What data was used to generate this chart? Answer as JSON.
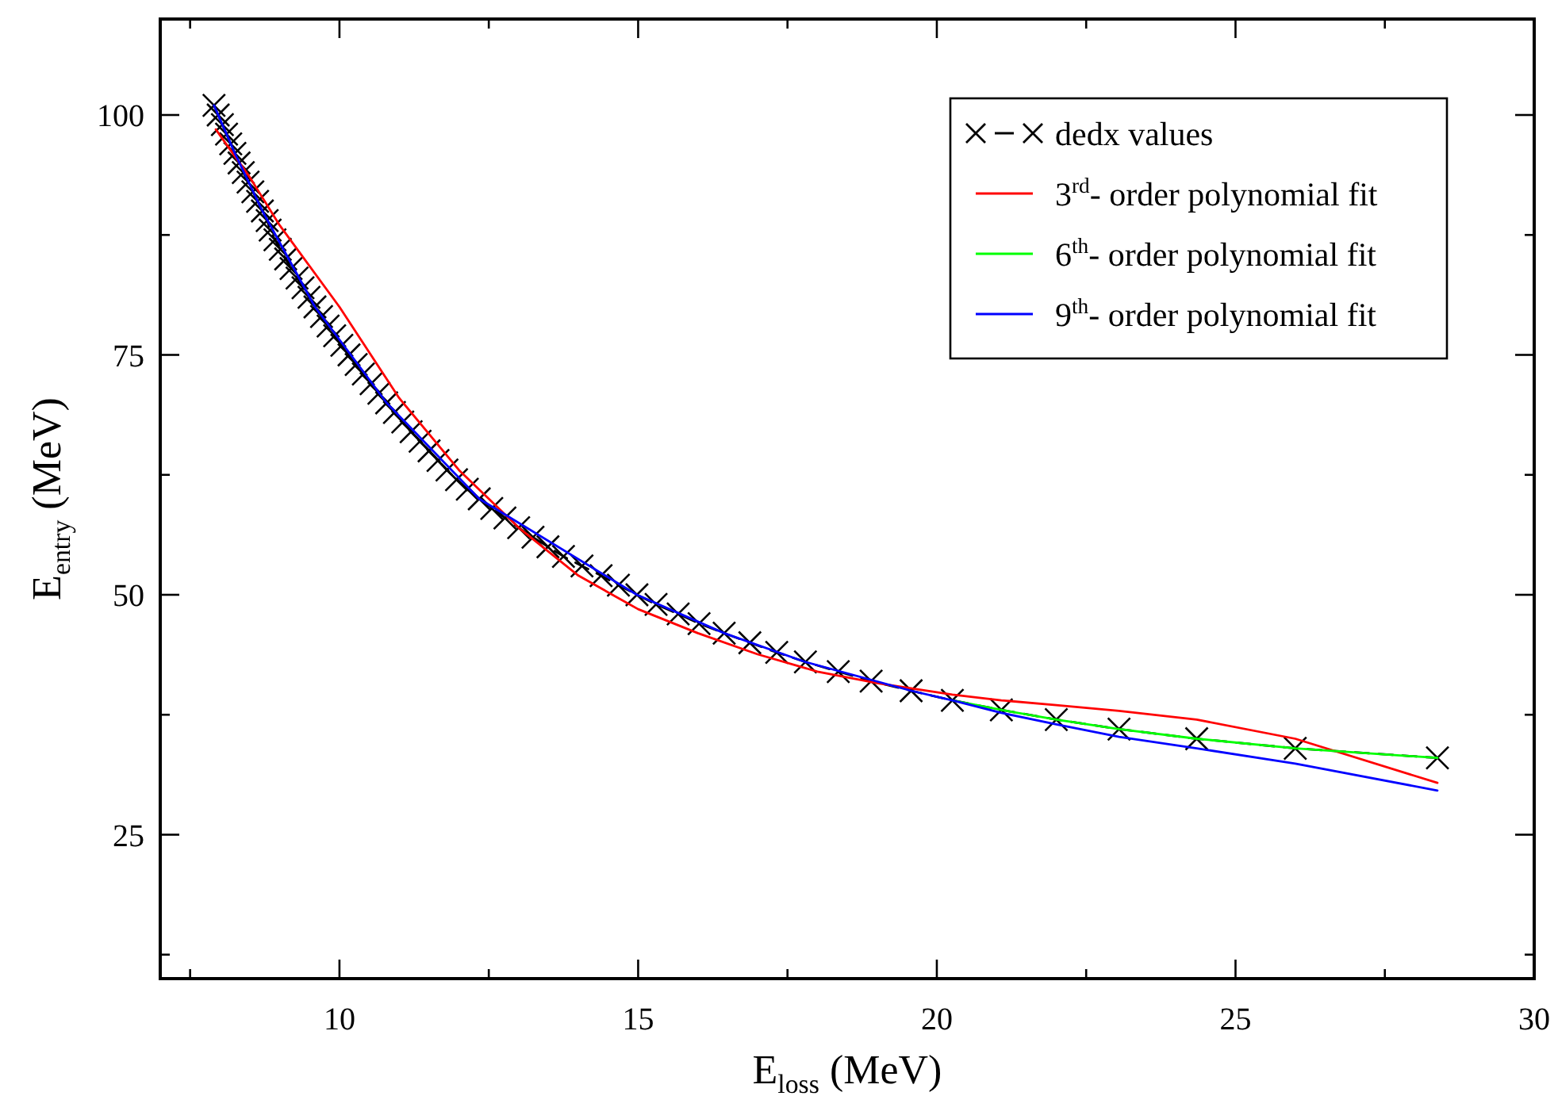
{
  "chart_data": {
    "type": "line",
    "xlabel": "E$_{loss}$ (MeV)",
    "ylabel": "E$_{entry}$ (MeV)",
    "xlim": [
      7,
      30
    ],
    "ylim": [
      10,
      110
    ],
    "xticks": [
      {
        "value": 7.5,
        "label": null
      },
      10,
      {
        "value": 12.5,
        "label": null
      },
      15,
      {
        "value": 17.5,
        "label": null
      },
      20,
      {
        "value": 22.5,
        "label": null
      },
      25,
      {
        "value": 27.5,
        "label": null
      },
      30
    ],
    "yticks": [
      {
        "value": 12.5,
        "label": null
      },
      25,
      {
        "value": 37.5,
        "label": null
      },
      50,
      {
        "value": 62.5,
        "label": null
      },
      75,
      {
        "value": 87.5,
        "label": null
      },
      100
    ],
    "grid": false,
    "legend": "top right",
    "series": [
      {
        "name": "dedx values",
        "color": "#000000",
        "marker": "cross",
        "line_style": "dashed",
        "x": [
          7.9,
          7.97,
          8.04,
          8.11,
          8.18,
          8.25,
          8.32,
          8.39,
          8.47,
          8.55,
          8.63,
          8.71,
          8.79,
          8.84,
          8.92,
          9.01,
          9.1,
          9.19,
          9.29,
          9.39,
          9.49,
          9.59,
          9.7,
          9.81,
          9.92,
          10.04,
          10.16,
          10.28,
          10.4,
          10.53,
          10.66,
          10.79,
          10.92,
          11.06,
          11.2,
          11.35,
          11.5,
          11.65,
          11.8,
          11.96,
          12.14,
          12.34,
          12.55,
          12.77,
          13.0,
          13.24,
          13.49,
          13.75,
          14.06,
          14.38,
          14.67,
          14.98,
          15.3,
          15.67,
          16.02,
          16.44,
          16.87,
          17.32,
          17.8,
          18.35,
          18.9,
          19.57,
          20.26,
          21.08,
          22.0,
          23.05,
          24.35,
          26.0,
          28.38
        ],
        "values": [
          101,
          100,
          99,
          98,
          97,
          96,
          95,
          94,
          93,
          92,
          91,
          90,
          89,
          88,
          87,
          86,
          85,
          84,
          83,
          82,
          81,
          80,
          79,
          78,
          77,
          76,
          75,
          74,
          73,
          72,
          71,
          70,
          69,
          68,
          67,
          66,
          65,
          64,
          63,
          62,
          61,
          60,
          59,
          58,
          57,
          56,
          55,
          54,
          53,
          52,
          51,
          50,
          49,
          48,
          47,
          46,
          45,
          44,
          43,
          42,
          41,
          40,
          39,
          38,
          37,
          36,
          35,
          34,
          33
        ]
      },
      {
        "name": "3$^{rd}$- order polynomial fit",
        "color": "#ff0000",
        "marker": "none",
        "line_style": "solid",
        "x": [
          7.93,
          8.5,
          9,
          10,
          11,
          12,
          13,
          14,
          15,
          16,
          17,
          18,
          19,
          20.26,
          21.08,
          22.0,
          23.05,
          24.35,
          26.0,
          28.38
        ],
        "values": [
          98.5,
          93.5,
          88.5,
          80,
          70.5,
          63,
          57,
          52,
          48.5,
          46,
          43.8,
          42,
          40.8,
          39.6,
          39.0,
          38.5,
          37.9,
          37.0,
          35.0,
          30.4
        ]
      },
      {
        "name": "6$^{th}$- order polynomial fit",
        "color": "#00ff00",
        "marker": "none",
        "line_style": "solid",
        "x": [
          20.26,
          21.08,
          22.0,
          23.05,
          24.35,
          26.0,
          28.38
        ],
        "values": [
          39,
          38,
          37,
          36,
          35,
          34,
          33
        ]
      },
      {
        "name": "9$^{th}$- order polynomial fit",
        "color": "#0000ff",
        "marker": "none",
        "line_style": "solid",
        "x": [
          7.9,
          8.25,
          8.71,
          9.59,
          10.79,
          12.34,
          14.98,
          16.44,
          17.8,
          19.57,
          20.26,
          21.08,
          22.0,
          23.05,
          24.35,
          26.0,
          28.38
        ],
        "values": [
          101,
          96,
          90,
          80,
          70,
          60,
          50,
          46,
          43,
          40,
          39,
          37.7,
          36.5,
          35.2,
          34.0,
          32.4,
          29.6
        ]
      }
    ]
  }
}
